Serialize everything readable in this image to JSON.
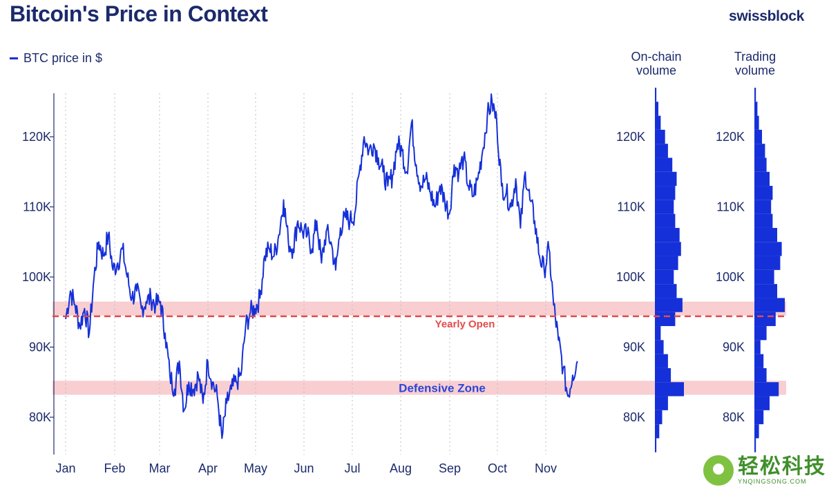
{
  "header": {
    "title": "Bitcoin's Price in Context",
    "brand": "swissblock",
    "legend_label": "BTC price in $"
  },
  "colors": {
    "line": "#1530d8",
    "zone_fill": "#f7c6c9",
    "yearly_open": "#e24b4b",
    "text": "#1b2a6b",
    "axis": "#1b2a6b"
  },
  "chart_data": [
    {
      "type": "line",
      "title": "Bitcoin's Price in Context",
      "series_name": "BTC price in $",
      "ylim": [
        75000,
        127000
      ],
      "y_ticks": [
        80000,
        90000,
        100000,
        110000,
        120000
      ],
      "y_tick_labels": [
        "80K",
        "90K",
        "100K",
        "110K",
        "120K"
      ],
      "months": [
        "Jan",
        "Feb",
        "Mar",
        "Apr",
        "May",
        "Jun",
        "Jul",
        "Aug",
        "Sep",
        "Oct",
        "Nov"
      ],
      "x_range_days": [
        0,
        330
      ],
      "grid": "vertical dotted monthly",
      "price_days": [
        0,
        3,
        6,
        9,
        12,
        15,
        18,
        21,
        24,
        27,
        30,
        33,
        36,
        39,
        42,
        45,
        48,
        51,
        54,
        57,
        60,
        63,
        66,
        69,
        72,
        75,
        78,
        81,
        84,
        87,
        90,
        93,
        96,
        99,
        102,
        105,
        108,
        111,
        114,
        117,
        120,
        123,
        126,
        129,
        132,
        135,
        138,
        141,
        144,
        147,
        150,
        153,
        156,
        159,
        162,
        165,
        168,
        171,
        174,
        177,
        180,
        183,
        186,
        189,
        192,
        195,
        198,
        201,
        204,
        207,
        210,
        213,
        216,
        219,
        222,
        225,
        228,
        231,
        234,
        237,
        240,
        243,
        246,
        249,
        252,
        255,
        258,
        261,
        264,
        267,
        270,
        273,
        276,
        279,
        282,
        285,
        288,
        291,
        294,
        297,
        300,
        303,
        306,
        309,
        312,
        315,
        318,
        321,
        324
      ],
      "price_values": [
        94000,
        98000,
        96000,
        93000,
        95500,
        92000,
        100000,
        105000,
        103000,
        106000,
        101000,
        102000,
        104000,
        100000,
        97000,
        98000,
        95500,
        96500,
        97000,
        96000,
        96500,
        92000,
        86000,
        84000,
        88000,
        81000,
        85000,
        84000,
        86000,
        82000,
        88000,
        85000,
        83000,
        77000,
        82000,
        84000,
        85000,
        86000,
        93000,
        95000,
        95500,
        97000,
        103000,
        104000,
        103000,
        106000,
        111000,
        105000,
        104000,
        108000,
        106500,
        106000,
        104000,
        108000,
        102000,
        106500,
        105000,
        101000,
        107000,
        108500,
        108000,
        109000,
        115000,
        120000,
        118000,
        119000,
        117000,
        115000,
        113000,
        114500,
        119000,
        118000,
        115000,
        122000,
        116000,
        113000,
        114000,
        112000,
        110000,
        113000,
        111000,
        109000,
        116000,
        115000,
        117000,
        113000,
        111500,
        114000,
        118000,
        123000,
        125000,
        122000,
        113000,
        112000,
        110000,
        114000,
        107000,
        115000,
        111000,
        108000,
        103000,
        101000,
        104000,
        96000,
        91000,
        87000,
        83000,
        86000,
        88000
      ],
      "yearly_open": {
        "value": 94400,
        "label": "Yearly Open"
      },
      "zones": [
        {
          "low": 94500,
          "high": 96500
        },
        {
          "low": 83200,
          "high": 85200,
          "label": "Defensive Zone"
        }
      ]
    },
    {
      "type": "bar",
      "orientation": "horizontal",
      "title": "On-chain\nvolume",
      "y_tick_labels": [
        "80K",
        "90K",
        "100K",
        "110K",
        "120K"
      ],
      "price_levels": [
        76000,
        78000,
        80000,
        82000,
        84000,
        86000,
        88000,
        90000,
        92000,
        94000,
        96000,
        98000,
        100000,
        102000,
        104000,
        106000,
        108000,
        110000,
        112000,
        114000,
        116000,
        118000,
        120000,
        122000,
        124000,
        126000
      ],
      "relative_volume": [
        0.05,
        0.15,
        0.25,
        0.45,
        1.0,
        0.55,
        0.45,
        0.3,
        0.2,
        0.7,
        0.95,
        0.75,
        0.65,
        0.8,
        0.9,
        0.85,
        0.7,
        0.65,
        0.7,
        0.75,
        0.6,
        0.45,
        0.35,
        0.2,
        0.12,
        0.05
      ]
    },
    {
      "type": "bar",
      "orientation": "horizontal",
      "title": "Trading\nvolume",
      "y_tick_labels": [
        "80K",
        "90K",
        "100K",
        "110K",
        "120K"
      ],
      "price_levels": [
        76000,
        78000,
        80000,
        82000,
        84000,
        86000,
        88000,
        90000,
        92000,
        94000,
        96000,
        98000,
        100000,
        102000,
        104000,
        106000,
        108000,
        110000,
        112000,
        114000,
        116000,
        118000,
        120000,
        122000,
        124000,
        126000
      ],
      "relative_volume": [
        0.05,
        0.15,
        0.3,
        0.5,
        0.8,
        0.4,
        0.3,
        0.2,
        0.4,
        0.7,
        1.0,
        0.75,
        0.65,
        0.85,
        0.9,
        0.75,
        0.6,
        0.55,
        0.6,
        0.5,
        0.4,
        0.35,
        0.25,
        0.15,
        0.1,
        0.05
      ]
    }
  ],
  "panels": {
    "onchain_title_1": "On-chain",
    "onchain_title_2": "volume",
    "trading_title_1": "Trading",
    "trading_title_2": "volume"
  },
  "watermark": {
    "main": "轻松科技",
    "sub": "YNQINGSONG.COM"
  }
}
